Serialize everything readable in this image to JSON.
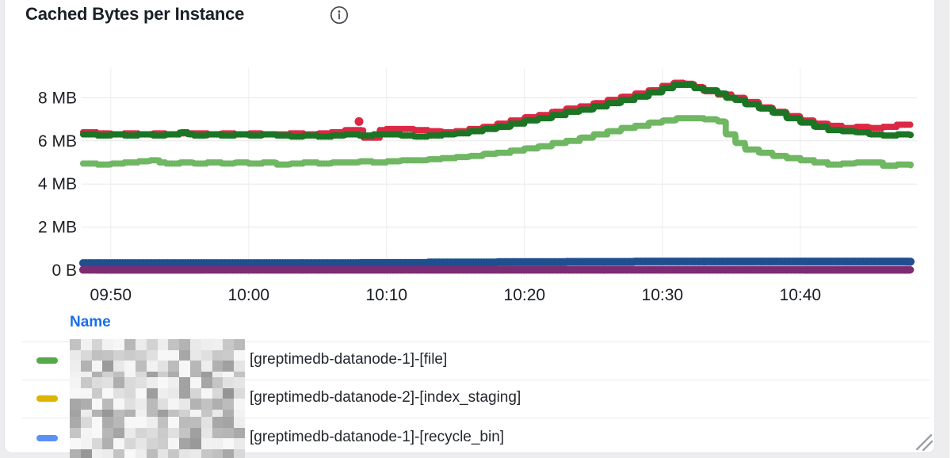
{
  "panel": {
    "title": "Cached Bytes per Instance"
  },
  "legend": {
    "header": "Name",
    "rows": [
      {
        "color": "#56A84B",
        "redacted_prefix": true,
        "label": "[greptimedb-datanode-1]-[file]"
      },
      {
        "color": "#DFB400",
        "redacted_prefix": true,
        "label": "[greptimedb-datanode-2]-[index_staging]"
      },
      {
        "color": "#5B90F5",
        "redacted_prefix": true,
        "label": "[greptimedb-datanode-1]-[recycle_bin]"
      }
    ]
  },
  "chart_data": {
    "type": "scatter",
    "title": "Cached Bytes per Instance",
    "grid": true,
    "x_start_time": "09:48",
    "x_range_minutes": [
      0,
      60
    ],
    "ylim_mb": [
      0,
      9.4
    ],
    "x_ticks": [
      {
        "label": "09:50",
        "t": 2
      },
      {
        "label": "10:00",
        "t": 12
      },
      {
        "label": "10:10",
        "t": 22
      },
      {
        "label": "10:20",
        "t": 32
      },
      {
        "label": "10:30",
        "t": 42
      },
      {
        "label": "10:40",
        "t": 52
      }
    ],
    "y_ticks": [
      {
        "label": "8 MB",
        "mb": 8
      },
      {
        "label": "6 MB",
        "mb": 6
      },
      {
        "label": "4 MB",
        "mb": 4
      },
      {
        "label": "2 MB",
        "mb": 2
      },
      {
        "label": "0 B",
        "mb": 0
      }
    ],
    "series": [
      {
        "name": "red-series",
        "color": "#DC2845",
        "width": 7.5,
        "unit": "MB",
        "points": [
          [
            0,
            6.4
          ],
          [
            1,
            6.35
          ],
          [
            2,
            6.3
          ],
          [
            3,
            6.35
          ],
          [
            4,
            6.3
          ],
          [
            5,
            6.35
          ],
          [
            6,
            6.3
          ],
          [
            7,
            6.35
          ],
          [
            8,
            6.35
          ],
          [
            9,
            6.3
          ],
          [
            10,
            6.35
          ],
          [
            11,
            6.3
          ],
          [
            12,
            6.35
          ],
          [
            13,
            6.3
          ],
          [
            14,
            6.3
          ],
          [
            15,
            6.35
          ],
          [
            16,
            6.3
          ],
          [
            17,
            6.35
          ],
          [
            18,
            6.4
          ],
          [
            19,
            6.5
          ],
          [
            20,
            6.5
          ],
          [
            20.3,
            6.15
          ],
          [
            21,
            6.15
          ],
          [
            21.5,
            6.5
          ],
          [
            22,
            6.55
          ],
          [
            23,
            6.55
          ],
          [
            24,
            6.5
          ],
          [
            25,
            6.45
          ],
          [
            26,
            6.4
          ],
          [
            27,
            6.45
          ],
          [
            28,
            6.55
          ],
          [
            29,
            6.65
          ],
          [
            30,
            6.8
          ],
          [
            31,
            6.95
          ],
          [
            32,
            7.1
          ],
          [
            33,
            7.2
          ],
          [
            34,
            7.35
          ],
          [
            35,
            7.5
          ],
          [
            36,
            7.6
          ],
          [
            37,
            7.75
          ],
          [
            38,
            7.9
          ],
          [
            39,
            8.05
          ],
          [
            40,
            8.2
          ],
          [
            41,
            8.35
          ],
          [
            42,
            8.55
          ],
          [
            42.8,
            8.7
          ],
          [
            43.6,
            8.65
          ],
          [
            44.3,
            8.5
          ],
          [
            45,
            8.3
          ],
          [
            46,
            8.15
          ],
          [
            47,
            8.0
          ],
          [
            48,
            7.8
          ],
          [
            49,
            7.55
          ],
          [
            50,
            7.35
          ],
          [
            51,
            7.15
          ],
          [
            52,
            6.95
          ],
          [
            53,
            6.8
          ],
          [
            54,
            6.7
          ],
          [
            55,
            6.6
          ],
          [
            56,
            6.65
          ],
          [
            57,
            6.6
          ],
          [
            58,
            6.65
          ],
          [
            59,
            6.75
          ],
          [
            60,
            6.75
          ]
        ]
      },
      {
        "name": "dark-green-series",
        "color": "#1B7524",
        "width": 7.5,
        "unit": "MB",
        "points": [
          [
            0,
            6.3
          ],
          [
            1,
            6.25
          ],
          [
            2,
            6.3
          ],
          [
            3,
            6.25
          ],
          [
            4,
            6.3
          ],
          [
            5,
            6.25
          ],
          [
            6,
            6.3
          ],
          [
            7,
            6.4
          ],
          [
            7.6,
            6.3
          ],
          [
            8,
            6.25
          ],
          [
            9,
            6.3
          ],
          [
            10,
            6.25
          ],
          [
            11,
            6.3
          ],
          [
            12,
            6.25
          ],
          [
            13,
            6.3
          ],
          [
            14,
            6.25
          ],
          [
            15,
            6.2
          ],
          [
            16,
            6.25
          ],
          [
            17,
            6.2
          ],
          [
            18,
            6.25
          ],
          [
            19,
            6.3
          ],
          [
            20,
            6.25
          ],
          [
            21,
            6.3
          ],
          [
            22,
            6.3
          ],
          [
            23,
            6.25
          ],
          [
            24,
            6.2
          ],
          [
            25,
            6.25
          ],
          [
            26,
            6.3
          ],
          [
            27,
            6.35
          ],
          [
            28,
            6.45
          ],
          [
            29,
            6.55
          ],
          [
            30,
            6.65
          ],
          [
            31,
            6.8
          ],
          [
            32,
            6.95
          ],
          [
            33,
            7.05
          ],
          [
            34,
            7.2
          ],
          [
            35,
            7.35
          ],
          [
            36,
            7.45
          ],
          [
            37,
            7.6
          ],
          [
            38,
            7.75
          ],
          [
            39,
            7.9
          ],
          [
            40,
            8.05
          ],
          [
            41,
            8.25
          ],
          [
            42,
            8.45
          ],
          [
            42.8,
            8.6
          ],
          [
            43.6,
            8.6
          ],
          [
            44.3,
            8.45
          ],
          [
            45,
            8.35
          ],
          [
            46,
            8.2
          ],
          [
            46.6,
            8.0
          ],
          [
            47.3,
            7.9
          ],
          [
            48,
            7.7
          ],
          [
            49,
            7.5
          ],
          [
            50,
            7.3
          ],
          [
            51,
            7.05
          ],
          [
            52,
            6.85
          ],
          [
            53,
            6.65
          ],
          [
            54,
            6.5
          ],
          [
            55,
            6.45
          ],
          [
            56,
            6.4
          ],
          [
            57,
            6.3
          ],
          [
            58,
            6.25
          ],
          [
            59,
            6.3
          ],
          [
            60,
            6.25
          ]
        ]
      },
      {
        "name": "light-green-series",
        "color": "#6FB763",
        "width": 7.5,
        "unit": "MB",
        "points": [
          [
            0,
            4.95
          ],
          [
            1,
            4.9
          ],
          [
            2,
            4.95
          ],
          [
            3,
            5.0
          ],
          [
            4,
            5.05
          ],
          [
            4.8,
            5.1
          ],
          [
            5.5,
            5.0
          ],
          [
            6,
            4.95
          ],
          [
            7,
            5.0
          ],
          [
            8,
            4.95
          ],
          [
            9,
            5.0
          ],
          [
            10,
            4.95
          ],
          [
            11,
            5.0
          ],
          [
            12,
            4.95
          ],
          [
            13,
            5.0
          ],
          [
            14,
            4.9
          ],
          [
            15,
            4.95
          ],
          [
            16,
            5.0
          ],
          [
            17,
            4.95
          ],
          [
            18,
            5.0
          ],
          [
            19,
            5.0
          ],
          [
            20,
            5.05
          ],
          [
            21,
            5.0
          ],
          [
            22,
            5.05
          ],
          [
            23,
            5.1
          ],
          [
            24,
            5.1
          ],
          [
            25,
            5.15
          ],
          [
            26,
            5.2
          ],
          [
            27,
            5.25
          ],
          [
            28,
            5.3
          ],
          [
            29,
            5.4
          ],
          [
            30,
            5.45
          ],
          [
            31,
            5.55
          ],
          [
            32,
            5.65
          ],
          [
            33,
            5.75
          ],
          [
            34,
            5.9
          ],
          [
            35,
            6.0
          ],
          [
            36,
            6.15
          ],
          [
            37,
            6.3
          ],
          [
            38,
            6.45
          ],
          [
            39,
            6.6
          ],
          [
            40,
            6.7
          ],
          [
            41,
            6.85
          ],
          [
            42,
            6.95
          ],
          [
            43,
            7.05
          ],
          [
            44,
            7.05
          ],
          [
            45,
            7.0
          ],
          [
            46,
            6.9
          ],
          [
            46.6,
            6.3
          ],
          [
            47.3,
            5.9
          ],
          [
            48,
            5.6
          ],
          [
            49,
            5.45
          ],
          [
            50,
            5.3
          ],
          [
            51,
            5.2
          ],
          [
            52,
            5.1
          ],
          [
            53,
            5.0
          ],
          [
            54,
            4.9
          ],
          [
            55,
            4.95
          ],
          [
            56,
            5.0
          ],
          [
            57,
            5.0
          ],
          [
            58,
            4.85
          ],
          [
            59,
            4.9
          ],
          [
            60,
            4.85
          ]
        ]
      },
      {
        "name": "dark-blue-series",
        "color": "#1F4F8F",
        "width": 9.5,
        "unit": "MB",
        "points": [
          [
            0,
            0.33
          ],
          [
            10,
            0.33
          ],
          [
            20,
            0.34
          ],
          [
            25,
            0.36
          ],
          [
            30,
            0.38
          ],
          [
            35,
            0.39
          ],
          [
            40,
            0.4
          ],
          [
            50,
            0.4
          ],
          [
            60,
            0.38
          ]
        ]
      },
      {
        "name": "purple-series",
        "color": "#7C2C73",
        "width": 9.5,
        "unit": "MB",
        "points": [
          [
            0,
            0.02
          ],
          [
            60,
            0.02
          ]
        ]
      }
    ],
    "outliers": [
      {
        "series": "red-series",
        "color": "#DC2845",
        "t": 20,
        "mb": 6.9
      }
    ]
  }
}
